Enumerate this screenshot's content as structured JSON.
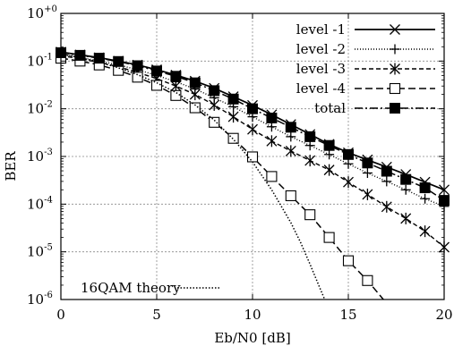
{
  "chart_data": {
    "type": "line",
    "xlabel": "Eb/N0 [dB]",
    "ylabel": "BER",
    "xlim": [
      0,
      20
    ],
    "ylim_log10": [
      -6,
      0
    ],
    "yscale": "log",
    "grid": true,
    "legend_position": "top-right",
    "x_ticks": [
      "0",
      "5",
      "10",
      "15",
      "20"
    ],
    "y_ticks": [
      {
        "exp": 0,
        "base": "10",
        "sup": "+0"
      },
      {
        "exp": -1,
        "base": "10",
        "sup": "-1"
      },
      {
        "exp": -2,
        "base": "10",
        "sup": "-2"
      },
      {
        "exp": -3,
        "base": "10",
        "sup": "-3"
      },
      {
        "exp": -4,
        "base": "10",
        "sup": "-4"
      },
      {
        "exp": -5,
        "base": "10",
        "sup": "-5"
      },
      {
        "exp": -6,
        "base": "10",
        "sup": "-6"
      }
    ],
    "series": [
      {
        "name": "level -1",
        "marker": "x",
        "dash": "solid",
        "x": [
          0,
          1,
          2,
          3,
          4,
          5,
          6,
          7,
          8,
          9,
          10,
          11,
          12,
          13,
          14,
          15,
          16,
          17,
          18,
          19,
          20
        ],
        "y": [
          0.155,
          0.135,
          0.118,
          0.1,
          0.083,
          0.066,
          0.051,
          0.038,
          0.027,
          0.018,
          0.0118,
          0.0075,
          0.0047,
          0.0029,
          0.0018,
          0.0012,
          0.00085,
          0.0006,
          0.00042,
          0.00029,
          0.0002
        ]
      },
      {
        "name": "level -2",
        "marker": "+",
        "dash": "dotted",
        "x": [
          0,
          1,
          2,
          3,
          4,
          5,
          6,
          7,
          8,
          9,
          10,
          11,
          12,
          13,
          14,
          15,
          16,
          17,
          18,
          19,
          20
        ],
        "y": [
          0.14,
          0.12,
          0.1,
          0.083,
          0.066,
          0.05,
          0.037,
          0.026,
          0.017,
          0.011,
          0.0068,
          0.0042,
          0.0026,
          0.0017,
          0.0011,
          0.0007,
          0.00045,
          0.0003,
          0.0002,
          0.00013,
          9e-05
        ]
      },
      {
        "name": "level -3",
        "marker": "star",
        "dash": "dashed",
        "x": [
          0,
          1,
          2,
          3,
          4,
          5,
          6,
          7,
          8,
          9,
          10,
          11,
          12,
          13,
          14,
          15,
          16,
          17,
          18,
          19,
          20
        ],
        "y": [
          0.13,
          0.112,
          0.094,
          0.076,
          0.058,
          0.043,
          0.03,
          0.02,
          0.012,
          0.0068,
          0.0037,
          0.0021,
          0.0013,
          0.00082,
          0.00052,
          0.00029,
          0.00016,
          8.8e-05,
          5e-05,
          2.7e-05,
          1.25e-05
        ]
      },
      {
        "name": "level -4",
        "marker": "open-square",
        "dash": "long-dashed",
        "x": [
          0,
          1,
          2,
          3,
          4,
          5,
          6,
          7,
          8,
          9,
          10,
          11,
          12,
          13,
          14,
          15,
          16,
          17
        ],
        "y": [
          0.115,
          0.1,
          0.083,
          0.064,
          0.046,
          0.031,
          0.019,
          0.0105,
          0.0052,
          0.0024,
          0.00098,
          0.00038,
          0.00015,
          6e-05,
          2e-05,
          6.5e-06,
          2.5e-06,
          8.3e-07
        ]
      },
      {
        "name": "total",
        "marker": "filled-square",
        "dash": "dash-dot",
        "x": [
          0,
          1,
          2,
          3,
          4,
          5,
          6,
          7,
          8,
          9,
          10,
          11,
          12,
          13,
          14,
          15,
          16,
          17,
          18,
          19,
          20
        ],
        "y": [
          0.15,
          0.132,
          0.115,
          0.098,
          0.08,
          0.062,
          0.048,
          0.035,
          0.024,
          0.016,
          0.01,
          0.0064,
          0.0041,
          0.0026,
          0.0017,
          0.0011,
          0.00073,
          0.00049,
          0.00033,
          0.00022,
          0.00012
        ]
      },
      {
        "name": "16QAM theory",
        "marker": "none",
        "dash": "fine-dotted",
        "x": [
          0,
          1,
          2,
          3,
          4,
          5,
          6,
          7,
          8,
          9,
          10,
          11,
          12,
          12.5,
          13,
          13.5,
          14,
          14.2
        ],
        "y": [
          0.14,
          0.118,
          0.095,
          0.072,
          0.052,
          0.035,
          0.022,
          0.012,
          0.0058,
          0.0023,
          0.00077,
          0.0002,
          4.1e-05,
          1.6e-05,
          5.5e-06,
          1.8e-06,
          6e-07,
          4e-07
        ]
      }
    ]
  }
}
